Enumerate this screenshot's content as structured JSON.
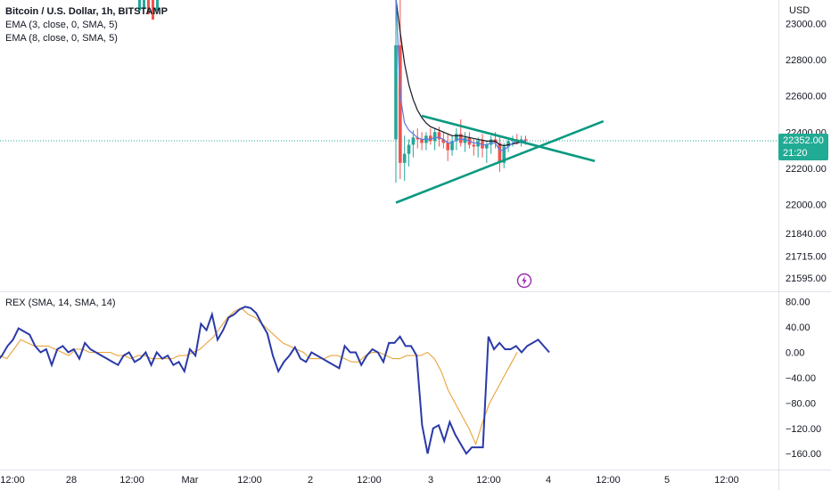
{
  "chart_data": [
    {
      "type": "candlestick",
      "title": "Bitcoin / U.S. Dollar, 1h, BITSTAMP",
      "currency": "USD",
      "indicators": [
        "EMA (3, close, 0, SMA, 5)",
        "EMA (8, close, 0, SMA, 5)"
      ],
      "y_ticks": [
        "23000.00",
        "22800.00",
        "22600.00",
        "22400.00",
        "22200.00",
        "22000.00",
        "21840.00",
        "21715.00",
        "21595.00"
      ],
      "ylim": [
        21520,
        23130
      ],
      "current_price": "22352.00",
      "countdown": "21:20",
      "x_ticks": [
        "12:00",
        "28",
        "12:00",
        "Mar",
        "12:00",
        "2",
        "12:00",
        "3",
        "12:00",
        "4",
        "12:00",
        "5",
        "12:00"
      ],
      "candles": [
        {
          "o": 22360,
          "h": 23160,
          "l": 22120,
          "c": 22880
        },
        {
          "o": 22880,
          "h": 23140,
          "l": 22140,
          "c": 22230
        },
        {
          "o": 22230,
          "h": 22380,
          "l": 22130,
          "c": 22280
        },
        {
          "o": 22280,
          "h": 22360,
          "l": 22210,
          "c": 22330
        },
        {
          "o": 22330,
          "h": 22410,
          "l": 22260,
          "c": 22370
        },
        {
          "o": 22370,
          "h": 22420,
          "l": 22310,
          "c": 22360
        },
        {
          "o": 22360,
          "h": 22400,
          "l": 22300,
          "c": 22340
        },
        {
          "o": 22340,
          "h": 22400,
          "l": 22300,
          "c": 22380
        },
        {
          "o": 22380,
          "h": 22420,
          "l": 22330,
          "c": 22350
        },
        {
          "o": 22350,
          "h": 22420,
          "l": 22300,
          "c": 22400
        },
        {
          "o": 22400,
          "h": 22430,
          "l": 22320,
          "c": 22360
        },
        {
          "o": 22360,
          "h": 22400,
          "l": 22310,
          "c": 22340
        },
        {
          "o": 22340,
          "h": 22390,
          "l": 22240,
          "c": 22300
        },
        {
          "o": 22300,
          "h": 22380,
          "l": 22270,
          "c": 22350
        },
        {
          "o": 22350,
          "h": 22420,
          "l": 22300,
          "c": 22390
        },
        {
          "o": 22390,
          "h": 22470,
          "l": 22320,
          "c": 22340
        },
        {
          "o": 22340,
          "h": 22400,
          "l": 22290,
          "c": 22370
        },
        {
          "o": 22370,
          "h": 22400,
          "l": 22310,
          "c": 22330
        },
        {
          "o": 22330,
          "h": 22360,
          "l": 22270,
          "c": 22320
        },
        {
          "o": 22320,
          "h": 22370,
          "l": 22260,
          "c": 22350
        },
        {
          "o": 22350,
          "h": 22390,
          "l": 22260,
          "c": 22310
        },
        {
          "o": 22310,
          "h": 22350,
          "l": 22230,
          "c": 22330
        },
        {
          "o": 22330,
          "h": 22380,
          "l": 22280,
          "c": 22360
        },
        {
          "o": 22360,
          "h": 22400,
          "l": 22310,
          "c": 22340
        },
        {
          "o": 22340,
          "h": 22370,
          "l": 22180,
          "c": 22230
        },
        {
          "o": 22230,
          "h": 22340,
          "l": 22200,
          "c": 22320
        },
        {
          "o": 22320,
          "h": 22370,
          "l": 22290,
          "c": 22350
        },
        {
          "o": 22350,
          "h": 22380,
          "l": 22320,
          "c": 22360
        },
        {
          "o": 22360,
          "h": 22390,
          "l": 22330,
          "c": 22350
        },
        {
          "o": 22350,
          "h": 22380,
          "l": 22320,
          "c": 22360
        },
        {
          "o": 22360,
          "h": 22380,
          "l": 22330,
          "c": 22352
        }
      ],
      "ema3": [
        23160,
        22600,
        22450,
        22410,
        22390,
        22370,
        22360,
        22360,
        22360,
        22370,
        22370,
        22360,
        22340,
        22340,
        22360,
        22360,
        22360,
        22350,
        22340,
        22340,
        22330,
        22330,
        22340,
        22340,
        22300,
        22300,
        22320,
        22340,
        22350,
        22350,
        22352
      ],
      "ema8": [
        23140,
        22950,
        22780,
        22660,
        22580,
        22520,
        22480,
        22450,
        22430,
        22420,
        22410,
        22400,
        22390,
        22380,
        22380,
        22380,
        22375,
        22370,
        22365,
        22360,
        22355,
        22350,
        22350,
        22350,
        22330,
        22325,
        22330,
        22335,
        22340,
        22345,
        22348
      ],
      "trendlines": [
        {
          "from": [
            0,
            22010
          ],
          "to": [
            48,
            22460
          ]
        },
        {
          "from": [
            6,
            22490
          ],
          "to": [
            46,
            22240
          ]
        }
      ]
    },
    {
      "type": "line",
      "title": "REX (SMA, 14, SMA, 14)",
      "y_ticks": [
        "80.00",
        "40.00",
        "0.00",
        "−40.00",
        "−80.00",
        "−120.00",
        "−160.00"
      ],
      "ylim": [
        -185,
        95
      ],
      "series": [
        {
          "color": "#2a3aa8",
          "values": [
            -15,
            -5,
            10,
            20,
            38,
            33,
            28,
            10,
            0,
            5,
            -20,
            5,
            10,
            0,
            5,
            -10,
            15,
            5,
            0,
            -5,
            -10,
            -15,
            -20,
            -5,
            0,
            -15,
            -10,
            0,
            -20,
            0,
            -10,
            -5,
            -20,
            -15,
            -30,
            5,
            -5,
            45,
            35,
            60,
            20,
            35,
            55,
            60,
            68,
            72,
            70,
            62,
            45,
            30,
            -5,
            -30,
            -15,
            -5,
            8,
            -10,
            -15,
            0,
            -5,
            -10,
            -15,
            -20,
            -25,
            10,
            0,
            0,
            -20,
            -5,
            5,
            0,
            -15,
            15,
            15,
            25,
            10,
            10,
            -5,
            -115,
            -160,
            -120,
            -115,
            -140,
            -110,
            -130,
            -145,
            -160,
            -150,
            -150,
            -150,
            25,
            5,
            15,
            5,
            5,
            10,
            0,
            10,
            15,
            20,
            10,
            0
          ],
          "x_start": 0
        },
        {
          "color": "#e8a33a",
          "values": [
            -5,
            -10,
            5,
            20,
            15,
            10,
            10,
            10,
            5,
            0,
            -5,
            5,
            5,
            0,
            0,
            0,
            0,
            -5,
            -5,
            -10,
            -5,
            -5,
            -10,
            -10,
            -10,
            -10,
            -5,
            -5,
            0,
            5,
            15,
            25,
            40,
            55,
            65,
            70,
            60,
            55,
            45,
            35,
            25,
            15,
            10,
            5,
            0,
            -10,
            -10,
            -10,
            -5,
            -5,
            -10,
            -15,
            -15,
            -5,
            0,
            0,
            -5,
            -10,
            -10,
            -5,
            -5,
            -5,
            0,
            -10,
            -30,
            -60,
            -80,
            -100,
            -120,
            -145,
            -110,
            -80,
            -60,
            -40,
            -20,
            0
          ],
          "x_start": 0
        }
      ]
    }
  ]
}
